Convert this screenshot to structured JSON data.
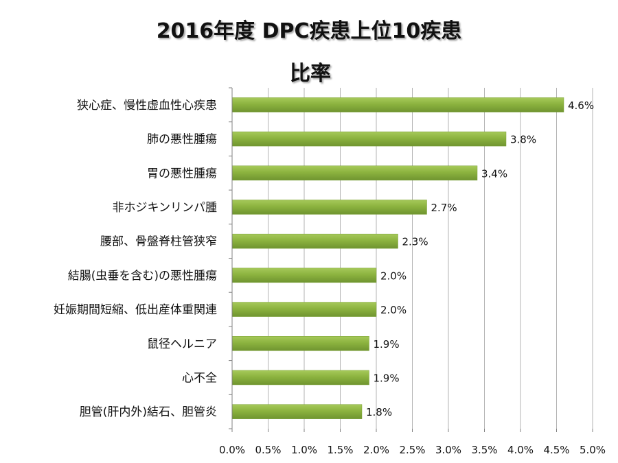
{
  "chart_data": {
    "type": "bar",
    "orientation": "horizontal",
    "title": "2016年度 DPC疾患上位10疾患",
    "subtitle": "比率",
    "xlim": [
      0,
      5.0
    ],
    "x_tick_step": 0.5,
    "tick_suffix": "%",
    "grid": true,
    "bar_color": "#8cb33f",
    "categories": [
      "狭心症、慢性虚血性心疾患",
      "肺の悪性腫瘍",
      "胃の悪性腫瘍",
      "非ホジキンリンパ腫",
      "腰部、骨盤脊柱管狭窄",
      "結腸(虫垂を含む)の悪性腫瘍",
      "妊娠期間短縮、低出産体重関連",
      "鼠径ヘルニア",
      "心不全",
      "胆管(肝内外)結石、胆管炎"
    ],
    "values": [
      4.6,
      3.8,
      3.4,
      2.7,
      2.3,
      2.0,
      2.0,
      1.9,
      1.9,
      1.8
    ],
    "value_labels": [
      "4.6%",
      "3.8%",
      "3.4%",
      "2.7%",
      "2.3%",
      "2.0%",
      "2.0%",
      "1.9%",
      "1.9%",
      "1.8%"
    ],
    "tick_labels": [
      "0.0%",
      "0.5%",
      "1.0%",
      "1.5%",
      "2.0%",
      "2.5%",
      "3.0%",
      "3.5%",
      "4.0%",
      "4.5%",
      "5.0%"
    ]
  }
}
